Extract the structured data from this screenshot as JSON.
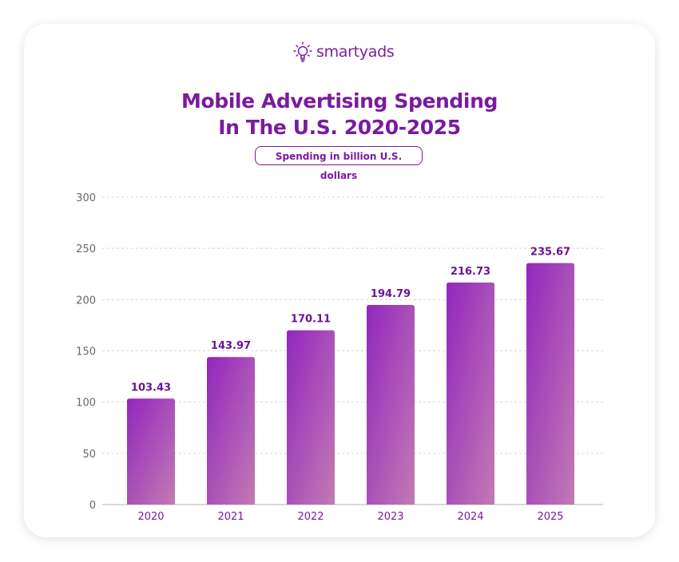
{
  "brand": {
    "name": "smartyads",
    "color": "#7d1fa0"
  },
  "title_line1": "Mobile Advertising Spending",
  "title_line2": "In The U.S. 2020-2025",
  "subtitle": "Spending in billion U.S. dollars",
  "chart_data": {
    "type": "bar",
    "title": "Mobile Advertising Spending In The U.S. 2020-2025",
    "subtitle": "Spending in billion U.S. dollars",
    "categories": [
      "2020",
      "2021",
      "2022",
      "2023",
      "2024",
      "2025"
    ],
    "values": [
      103.43,
      143.97,
      170.11,
      194.79,
      216.73,
      235.67
    ],
    "data_labels": [
      "103.43",
      "143.97",
      "170.11",
      "194.79",
      "216.73",
      "235.67"
    ],
    "ylim": [
      0,
      300
    ],
    "yticks": [
      "0",
      "50",
      "100",
      "150",
      "200",
      "250",
      "300"
    ],
    "grid": true,
    "colors": {
      "bar_start": "#9226be",
      "bar_end": "#c27bb3",
      "label": "#6b1591",
      "tick": "#666666"
    }
  }
}
